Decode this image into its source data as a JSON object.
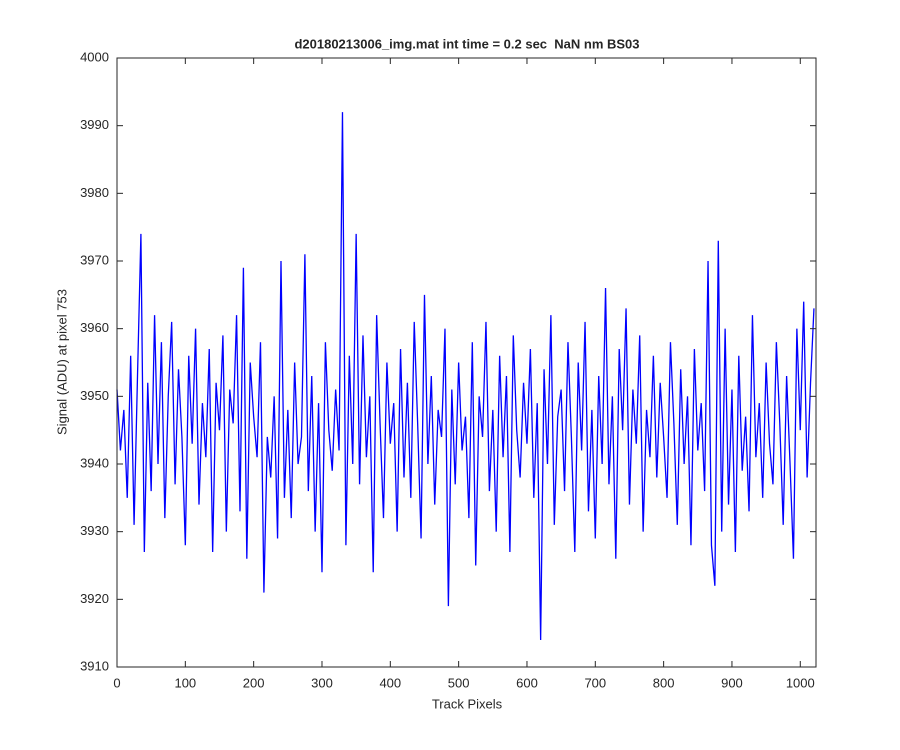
{
  "chart_data": {
    "type": "line",
    "title": "d20180213006_img.mat int time = 0.2 sec  NaN nm BS03",
    "xlabel": "Track Pixels",
    "ylabel": "Signal (ADU) at pixel 753",
    "xlim": [
      0,
      1023
    ],
    "ylim": [
      3910,
      4000
    ],
    "xticks": [
      0,
      100,
      200,
      300,
      400,
      500,
      600,
      700,
      800,
      900,
      1000
    ],
    "yticks": [
      3910,
      3920,
      3930,
      3940,
      3950,
      3960,
      3970,
      3980,
      3990,
      4000
    ],
    "grid": false,
    "series": [
      {
        "name": "Signal",
        "color": "#0000ff",
        "x": [
          0,
          5,
          10,
          15,
          20,
          25,
          30,
          35,
          40,
          45,
          50,
          55,
          60,
          65,
          70,
          75,
          80,
          85,
          90,
          95,
          100,
          105,
          110,
          115,
          120,
          125,
          130,
          135,
          140,
          145,
          150,
          155,
          160,
          165,
          170,
          175,
          180,
          185,
          190,
          195,
          200,
          205,
          210,
          215,
          220,
          225,
          230,
          235,
          240,
          245,
          250,
          255,
          260,
          265,
          270,
          275,
          280,
          285,
          290,
          295,
          300,
          305,
          310,
          315,
          320,
          325,
          330,
          335,
          340,
          345,
          350,
          355,
          360,
          365,
          370,
          375,
          380,
          385,
          390,
          395,
          400,
          405,
          410,
          415,
          420,
          425,
          430,
          435,
          440,
          445,
          450,
          455,
          460,
          465,
          470,
          475,
          480,
          485,
          490,
          495,
          500,
          505,
          510,
          515,
          520,
          525,
          530,
          535,
          540,
          545,
          550,
          555,
          560,
          565,
          570,
          575,
          580,
          585,
          590,
          595,
          600,
          605,
          610,
          615,
          620,
          625,
          630,
          635,
          640,
          645,
          650,
          655,
          660,
          665,
          670,
          675,
          680,
          685,
          690,
          695,
          700,
          705,
          710,
          715,
          720,
          725,
          730,
          735,
          740,
          745,
          750,
          755,
          760,
          765,
          770,
          775,
          780,
          785,
          790,
          795,
          800,
          805,
          810,
          815,
          820,
          825,
          830,
          835,
          840,
          845,
          850,
          855,
          860,
          865,
          870,
          875,
          880,
          885,
          890,
          895,
          900,
          905,
          910,
          915,
          920,
          925,
          930,
          935,
          940,
          945,
          950,
          955,
          960,
          965,
          970,
          975,
          980,
          985,
          990,
          995,
          1000,
          1005,
          1010,
          1015,
          1020
        ],
        "values": [
          3951,
          3942,
          3948,
          3935,
          3956,
          3931,
          3953,
          3974,
          3927,
          3952,
          3936,
          3962,
          3940,
          3958,
          3932,
          3950,
          3961,
          3937,
          3954,
          3944,
          3928,
          3956,
          3943,
          3960,
          3934,
          3949,
          3941,
          3957,
          3927,
          3952,
          3945,
          3959,
          3930,
          3951,
          3946,
          3962,
          3933,
          3969,
          3926,
          3955,
          3947,
          3941,
          3958,
          3921,
          3944,
          3938,
          3950,
          3929,
          3970,
          3935,
          3948,
          3932,
          3955,
          3940,
          3944,
          3971,
          3936,
          3953,
          3930,
          3949,
          3924,
          3958,
          3945,
          3939,
          3951,
          3942,
          3992,
          3928,
          3956,
          3940,
          3974,
          3937,
          3959,
          3941,
          3950,
          3924,
          3962,
          3946,
          3932,
          3955,
          3943,
          3949,
          3930,
          3957,
          3938,
          3952,
          3935,
          3961,
          3946,
          3929,
          3965,
          3940,
          3953,
          3934,
          3948,
          3944,
          3960,
          3919,
          3951,
          3937,
          3955,
          3942,
          3947,
          3932,
          3958,
          3925,
          3950,
          3944,
          3961,
          3936,
          3948,
          3930,
          3956,
          3941,
          3953,
          3927,
          3959,
          3945,
          3938,
          3952,
          3943,
          3957,
          3935,
          3949,
          3914,
          3954,
          3940,
          3962,
          3931,
          3947,
          3951,
          3936,
          3958,
          3944,
          3927,
          3955,
          3942,
          3961,
          3933,
          3948,
          3929,
          3953,
          3940,
          3966,
          3937,
          3950,
          3926,
          3957,
          3945,
          3963,
          3934,
          3951,
          3943,
          3959,
          3930,
          3948,
          3941,
          3956,
          3938,
          3952,
          3944,
          3935,
          3958,
          3946,
          3931,
          3954,
          3940,
          3950,
          3928,
          3957,
          3942,
          3949,
          3936,
          3970,
          3928,
          3922,
          3973,
          3930,
          3960,
          3934,
          3951,
          3927,
          3956,
          3939,
          3947,
          3933,
          3962,
          3941,
          3949,
          3935,
          3955,
          3943,
          3937,
          3958,
          3946,
          3931,
          3953,
          3940,
          3926,
          3960,
          3945,
          3964,
          3938,
          3952,
          3963
        ]
      }
    ]
  }
}
